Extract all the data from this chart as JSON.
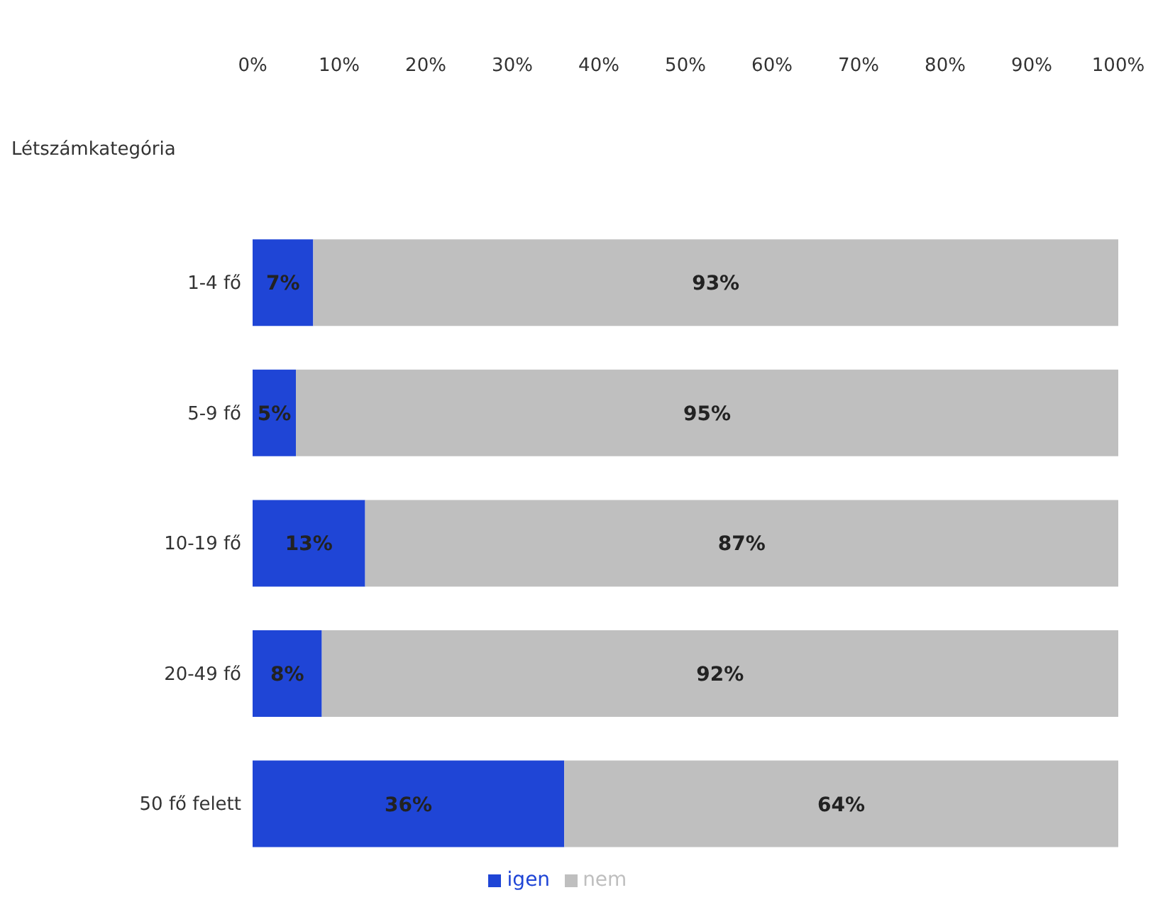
{
  "chart_data": {
    "type": "bar",
    "orientation": "horizontal",
    "stacked": true,
    "ylabel": "Létszámkategória",
    "categories": [
      "1-4 fő",
      "5-9 fő",
      "10-19 fő",
      "20-49 fő",
      "50 fő felett"
    ],
    "series": [
      {
        "name": "igen",
        "color": "#1f45d6",
        "values": [
          7,
          5,
          13,
          8,
          36
        ],
        "value_labels": [
          "7%",
          "5%",
          "13%",
          "8%",
          "36%"
        ]
      },
      {
        "name": "nem",
        "color": "#bfbfbf",
        "values": [
          93,
          95,
          87,
          92,
          64
        ],
        "value_labels": [
          "93%",
          "95%",
          "87%",
          "92%",
          "64%"
        ]
      }
    ],
    "xlim": [
      0,
      100
    ],
    "xticks": [
      {
        "value": 0,
        "label": "0%"
      },
      {
        "value": 10,
        "label": "10%"
      },
      {
        "value": 20,
        "label": "20%"
      },
      {
        "value": 30,
        "label": "30%"
      },
      {
        "value": 40,
        "label": "40%"
      },
      {
        "value": 50,
        "label": "50%"
      },
      {
        "value": 60,
        "label": "60%"
      },
      {
        "value": 70,
        "label": "70%"
      },
      {
        "value": 80,
        "label": "80%"
      },
      {
        "value": 90,
        "label": "90%"
      },
      {
        "value": 100,
        "label": "100%"
      }
    ],
    "grid": false,
    "legend": "bottom"
  }
}
